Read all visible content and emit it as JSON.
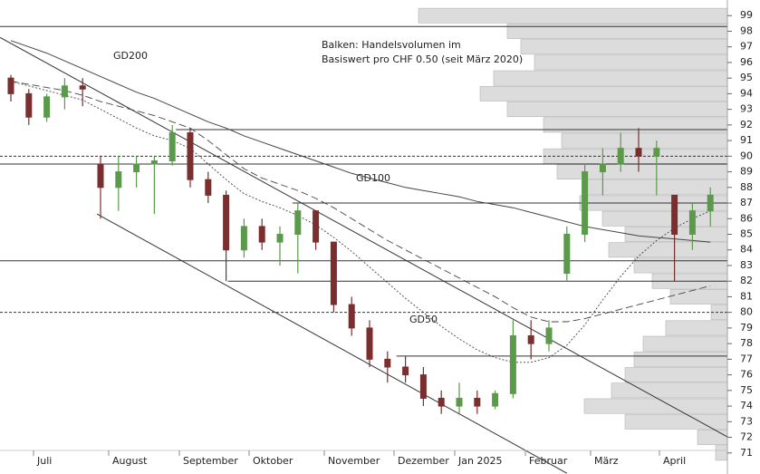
{
  "chart_data": {
    "type": "candlestick",
    "annotation_lines": [
      "Balken: Handelsvolumen im",
      "Basiswert pro CHF 0.50 (seit März 2020)"
    ],
    "months": [
      "Juli",
      "August",
      "September",
      "Oktober",
      "November",
      "Dezember",
      "Jan 2025",
      "Februar",
      "März",
      "April"
    ],
    "ylim": [
      70,
      100
    ],
    "yticks": [
      71,
      72,
      73,
      74,
      75,
      76,
      77,
      78,
      79,
      80,
      81,
      82,
      83,
      84,
      85,
      86,
      87,
      88,
      89,
      90,
      91,
      92,
      93,
      94,
      95,
      96,
      97,
      98,
      99
    ],
    "up_color": "#5a9a4a",
    "down_color": "#7a2e2e",
    "open": [
      95,
      94,
      92.5,
      93.8,
      94.5,
      89.5,
      88,
      89,
      89.5,
      89.7,
      91.5,
      88.5,
      87.5,
      84,
      85.5,
      84.5,
      85,
      86.5,
      84.5,
      80.5,
      79,
      77,
      76.5,
      76,
      74.5,
      74,
      74.5,
      74,
      74.8,
      78.5,
      78,
      82.5,
      85,
      89,
      89.5,
      90.5,
      90,
      87.5,
      85,
      86.5
    ],
    "high": [
      95.2,
      94.3,
      94,
      95,
      95,
      90,
      90,
      90,
      90,
      92,
      91.8,
      89,
      87.8,
      86,
      86,
      85.5,
      87,
      86.5,
      84.5,
      81,
      79.5,
      77.5,
      77.2,
      76.5,
      75,
      75.5,
      75,
      75,
      79.5,
      79.5,
      79.5,
      85.5,
      89.5,
      90.5,
      91.5,
      91.8,
      91,
      87.5,
      87,
      88
    ],
    "low": [
      93.5,
      92,
      92.2,
      93,
      93.2,
      86,
      86.5,
      88,
      86.3,
      89.4,
      88,
      87,
      82,
      83.5,
      84,
      83,
      82.5,
      84,
      80,
      78.5,
      76.5,
      75.5,
      75.5,
      74,
      73.5,
      73.5,
      73.5,
      73.8,
      74.5,
      77,
      77.5,
      82,
      84.5,
      87.5,
      89,
      89,
      87.5,
      82,
      84,
      85.5
    ],
    "close": [
      94,
      92.5,
      93.8,
      94.5,
      94.3,
      88,
      89,
      89.5,
      89.7,
      91.5,
      88.5,
      87.5,
      84,
      85.5,
      84.5,
      85,
      86.5,
      84.5,
      80.5,
      79,
      77,
      76.5,
      76,
      74.5,
      74,
      74.5,
      74,
      74.8,
      78.5,
      78,
      79,
      85,
      89,
      89.5,
      90.5,
      90,
      90.5,
      85,
      86.5,
      87.5
    ],
    "moving_averages": [
      {
        "name": "GD200",
        "style": "solid",
        "values": [
          97.4,
          97.0,
          96.6,
          96.1,
          95.6,
          95.1,
          94.6,
          94.1,
          93.7,
          93.2,
          92.7,
          92.2,
          91.8,
          91.3,
          90.9,
          90.5,
          90.1,
          89.7,
          89.3,
          88.9,
          88.6,
          88.3,
          88.0,
          87.8,
          87.6,
          87.4,
          87.1,
          86.9,
          86.7,
          86.4,
          86.1,
          85.8,
          85.5,
          85.3,
          85.1,
          84.9,
          84.8,
          84.7,
          84.6,
          84.5
        ]
      },
      {
        "name": "GD100",
        "style": "dashed",
        "values": [
          94.8,
          94.6,
          94.4,
          94.2,
          93.9,
          93.5,
          93.2,
          92.9,
          92.6,
          92.2,
          91.8,
          91.0,
          90.1,
          89.2,
          88.6,
          88.2,
          87.8,
          87.3,
          86.7,
          86.0,
          85.3,
          84.6,
          84.0,
          83.4,
          82.8,
          82.2,
          81.6,
          81.0,
          80.3,
          79.7,
          79.4,
          79.4,
          79.6,
          79.9,
          80.2,
          80.5,
          80.8,
          81.1,
          81.4,
          81.7
        ]
      },
      {
        "name": "GD50",
        "style": "dotted",
        "values": [
          94.8,
          94.5,
          94.2,
          93.9,
          93.6,
          93.0,
          92.4,
          91.8,
          91.3,
          91.0,
          90.5,
          89.5,
          88.5,
          87.6,
          87.1,
          86.7,
          86.2,
          85.6,
          84.8,
          83.9,
          82.9,
          81.9,
          80.9,
          80.0,
          79.1,
          78.3,
          77.6,
          77.1,
          76.8,
          76.8,
          77.1,
          77.9,
          79.2,
          80.8,
          82.3,
          83.6,
          84.6,
          85.4,
          86.0,
          86.5
        ]
      }
    ],
    "levels": [
      {
        "value": 98.3,
        "style": "solid",
        "start": -1
      },
      {
        "value": 91.7,
        "style": "solid",
        "start": 9.2
      },
      {
        "value": 90,
        "style": "dotted",
        "start": -1
      },
      {
        "value": 89.5,
        "style": "solid",
        "start": -1
      },
      {
        "value": 87,
        "style": "solid",
        "start": 15.7
      },
      {
        "value": 83.3,
        "style": "solid",
        "start": -1
      },
      {
        "value": 82,
        "style": "solid",
        "start": 12.1
      },
      {
        "value": 80,
        "style": "dotted",
        "start": -1
      },
      {
        "value": 77.2,
        "style": "solid",
        "start": 21.5
      }
    ],
    "trend_lines": [
      {
        "from": [
          -0.6,
          97.6
        ],
        "to": [
          40,
          72
        ]
      },
      {
        "from": [
          4.8,
          86.3
        ],
        "to": [
          31,
          69.7
        ]
      }
    ],
    "volume_profile": {
      "color": "#dcdcdc",
      "xlim": [
        0,
        803
      ],
      "levels": [
        99,
        98,
        97,
        96,
        95,
        94,
        93,
        92,
        91,
        90,
        89,
        88,
        87,
        86,
        85,
        84,
        83,
        82,
        81,
        80,
        79,
        78,
        77,
        76,
        75,
        74,
        73,
        72,
        71
      ],
      "values": [
        341,
        243,
        228,
        213,
        258,
        273,
        243,
        203,
        183,
        203,
        188,
        158,
        163,
        138,
        113,
        131,
        103,
        83,
        63,
        18,
        68,
        93,
        103,
        113,
        128,
        158,
        113,
        33,
        13
      ]
    }
  }
}
